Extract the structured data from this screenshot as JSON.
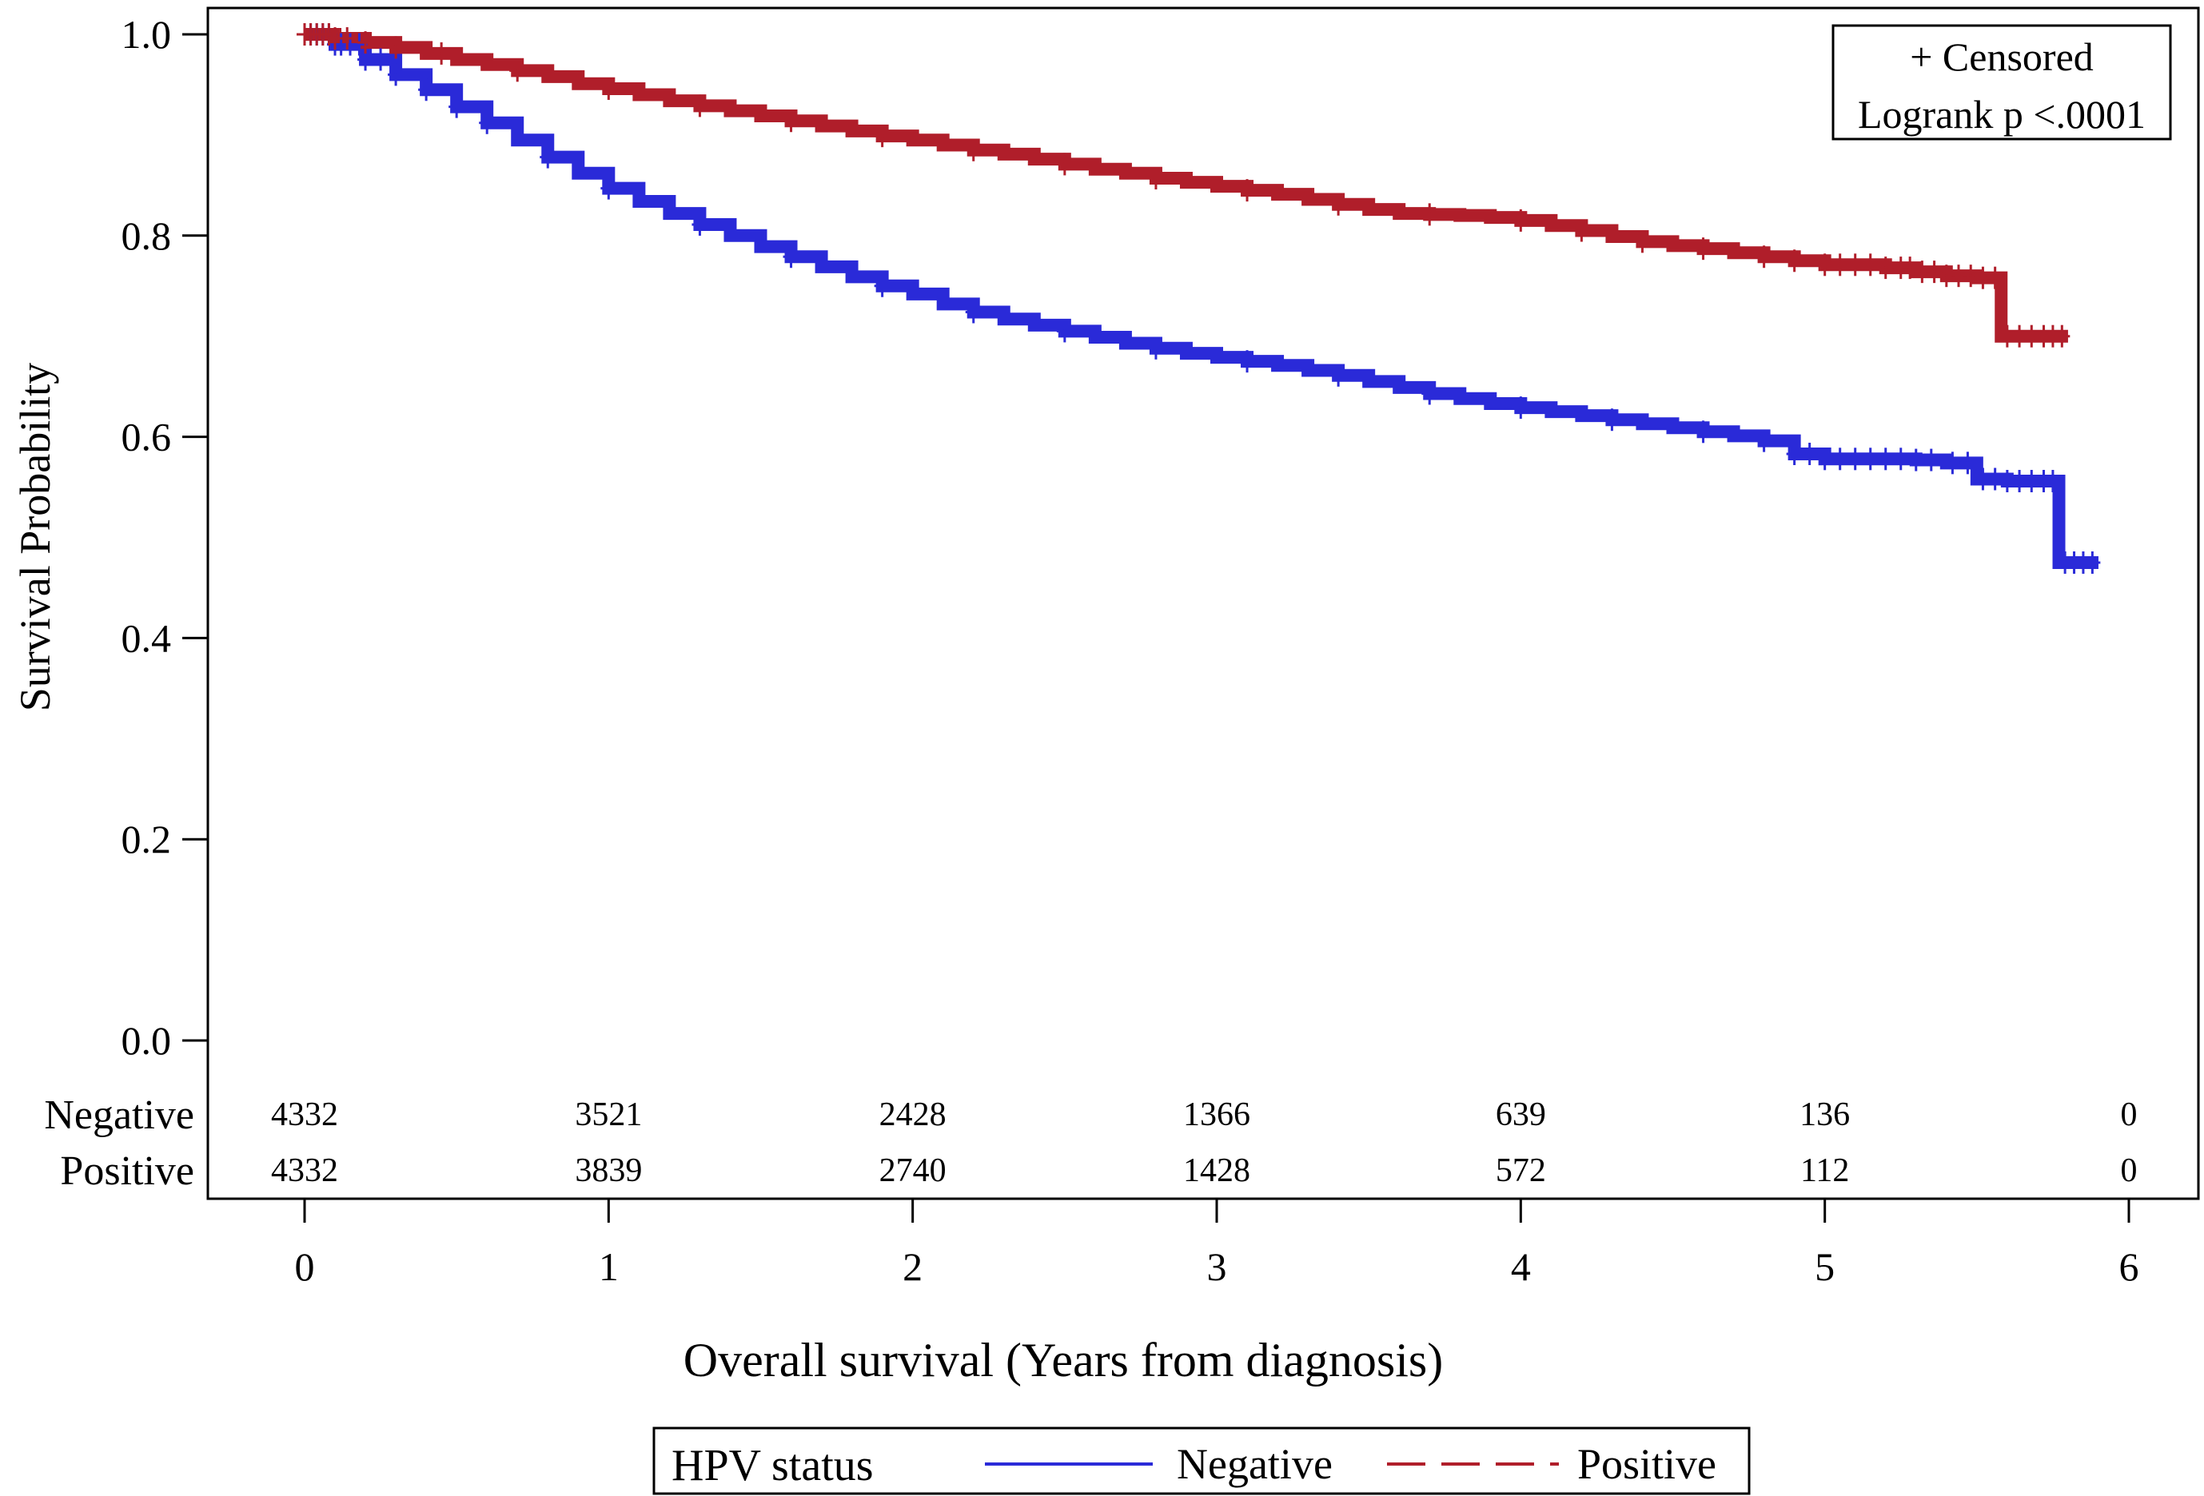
{
  "chart_data": {
    "type": "line",
    "xlabel": "Overall survival (Years from diagnosis)",
    "ylabel": "Survival Probability",
    "xlim": [
      0,
      6
    ],
    "ylim": [
      0,
      1
    ],
    "xticks": [
      "0",
      "1",
      "2",
      "3",
      "4",
      "5",
      "6"
    ],
    "yticks": [
      "0.0",
      "0.2",
      "0.4",
      "0.6",
      "0.8",
      "1.0"
    ],
    "grid": false,
    "inset": {
      "line1": "+ Censored",
      "line2": "Logrank p <.0001"
    },
    "legend": {
      "placement": "bottom-center",
      "title": "HPV status",
      "entries": [
        {
          "name": "Negative",
          "style": "solid",
          "color": "#2a2ad8"
        },
        {
          "name": "Positive",
          "style": "dashed",
          "color": "#b01e2a"
        }
      ]
    },
    "series": [
      {
        "name": "Negative",
        "color": "#2a2ad8",
        "x": [
          0,
          0.1,
          0.2,
          0.3,
          0.4,
          0.5,
          0.6,
          0.7,
          0.8,
          0.9,
          1.0,
          1.1,
          1.2,
          1.3,
          1.4,
          1.5,
          1.6,
          1.7,
          1.8,
          1.9,
          2.0,
          2.1,
          2.2,
          2.3,
          2.4,
          2.5,
          2.6,
          2.7,
          2.8,
          2.9,
          3.0,
          3.1,
          3.2,
          3.3,
          3.4,
          3.5,
          3.6,
          3.7,
          3.8,
          3.9,
          4.0,
          4.1,
          4.2,
          4.3,
          4.4,
          4.5,
          4.6,
          4.7,
          4.8,
          4.9,
          5.0,
          5.1,
          5.2,
          5.3,
          5.4,
          5.5,
          5.6,
          5.7,
          5.77,
          5.77,
          5.9
        ],
        "y": [
          1.0,
          0.99,
          0.975,
          0.96,
          0.945,
          0.928,
          0.912,
          0.895,
          0.878,
          0.862,
          0.847,
          0.834,
          0.822,
          0.811,
          0.8,
          0.789,
          0.779,
          0.769,
          0.759,
          0.75,
          0.742,
          0.732,
          0.724,
          0.717,
          0.711,
          0.705,
          0.699,
          0.693,
          0.688,
          0.683,
          0.679,
          0.675,
          0.671,
          0.666,
          0.661,
          0.655,
          0.649,
          0.643,
          0.638,
          0.633,
          0.629,
          0.625,
          0.621,
          0.617,
          0.613,
          0.609,
          0.605,
          0.601,
          0.596,
          0.583,
          0.578,
          0.578,
          0.578,
          0.577,
          0.574,
          0.558,
          0.556,
          0.556,
          0.556,
          0.475,
          0.475
        ]
      },
      {
        "name": "Positive",
        "color": "#b01e2a",
        "x": [
          0,
          0.1,
          0.2,
          0.3,
          0.4,
          0.5,
          0.6,
          0.7,
          0.8,
          0.9,
          1.0,
          1.1,
          1.2,
          1.3,
          1.4,
          1.5,
          1.6,
          1.7,
          1.8,
          1.9,
          2.0,
          2.1,
          2.2,
          2.3,
          2.4,
          2.5,
          2.6,
          2.7,
          2.8,
          2.9,
          3.0,
          3.1,
          3.2,
          3.3,
          3.4,
          3.5,
          3.6,
          3.7,
          3.8,
          3.9,
          4.0,
          4.1,
          4.2,
          4.3,
          4.4,
          4.5,
          4.6,
          4.7,
          4.8,
          4.9,
          5.0,
          5.1,
          5.2,
          5.3,
          5.4,
          5.5,
          5.58,
          5.58,
          5.8
        ],
        "y": [
          1.0,
          0.996,
          0.992,
          0.987,
          0.981,
          0.975,
          0.97,
          0.964,
          0.958,
          0.951,
          0.946,
          0.94,
          0.934,
          0.929,
          0.924,
          0.919,
          0.914,
          0.909,
          0.904,
          0.899,
          0.895,
          0.89,
          0.885,
          0.881,
          0.876,
          0.871,
          0.866,
          0.862,
          0.857,
          0.853,
          0.849,
          0.845,
          0.841,
          0.836,
          0.831,
          0.826,
          0.822,
          0.821,
          0.82,
          0.818,
          0.815,
          0.81,
          0.805,
          0.799,
          0.794,
          0.79,
          0.787,
          0.783,
          0.779,
          0.775,
          0.771,
          0.771,
          0.768,
          0.764,
          0.76,
          0.758,
          0.758,
          0.7,
          0.7
        ]
      }
    ],
    "censor_marks": [
      {
        "series": "Negative",
        "x": [
          0.0,
          0.02,
          0.04,
          0.06,
          0.08,
          0.1,
          0.12,
          0.15,
          0.18,
          0.2,
          0.25,
          0.3,
          0.4,
          0.5,
          0.6,
          0.8,
          1.0,
          1.3,
          1.6,
          1.9,
          2.2,
          2.5,
          2.8,
          3.1,
          3.4,
          3.7,
          4.0,
          4.3,
          4.6,
          4.8,
          4.9,
          4.95,
          5.0,
          5.05,
          5.1,
          5.15,
          5.2,
          5.25,
          5.3,
          5.35,
          5.42,
          5.47,
          5.52,
          5.56,
          5.6,
          5.64,
          5.68,
          5.72,
          5.75,
          5.79,
          5.82,
          5.85,
          5.88
        ]
      },
      {
        "series": "Positive",
        "x": [
          0.0,
          0.02,
          0.04,
          0.06,
          0.08,
          0.1,
          0.14,
          0.2,
          0.3,
          0.45,
          0.7,
          1.0,
          1.3,
          1.6,
          1.9,
          2.2,
          2.5,
          2.8,
          3.1,
          3.4,
          3.7,
          4.0,
          4.2,
          4.4,
          4.6,
          4.8,
          4.9,
          5.0,
          5.05,
          5.1,
          5.15,
          5.2,
          5.25,
          5.28,
          5.32,
          5.36,
          5.4,
          5.44,
          5.48,
          5.52,
          5.56,
          5.6,
          5.64,
          5.68,
          5.72,
          5.75,
          5.78
        ]
      }
    ],
    "risk_table": {
      "rows": [
        {
          "label": "Negative",
          "values": [
            "4332",
            "3521",
            "2428",
            "1366",
            "639",
            "136",
            "0"
          ]
        },
        {
          "label": "Positive",
          "values": [
            "4332",
            "3839",
            "2740",
            "1428",
            "572",
            "112",
            "0"
          ]
        }
      ]
    }
  }
}
